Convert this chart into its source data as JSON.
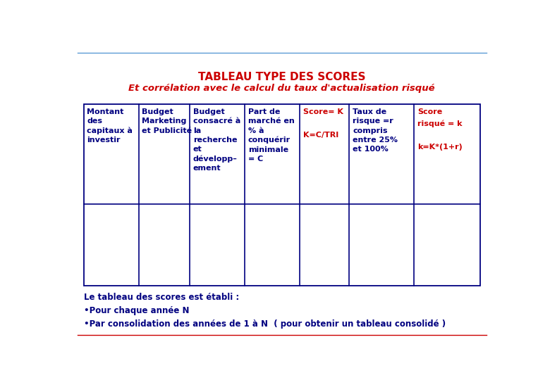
{
  "title_line1": "TABLEAU TYPE DES SCORES",
  "title_line2": "Et corrélation avec le calcul du taux d'actualisation risqué",
  "title_color": "#CC0000",
  "title_fontsize": 11,
  "subtitle_fontsize": 9.5,
  "bg_color": "#FFFFFF",
  "border_color": "#5B9BD5",
  "table_border_color": "#000080",
  "col1_text": "Montant\ndes\ncapitaux à\ninvestir",
  "col2_text": "Budget\nMarketing\net Publicité",
  "col3_text": "Budget\nconsacré à\nla\nrecherche\net\ndévelopp–\nement",
  "col4_text": "Part de\nmarché en\n% à\nconquérir\nminimale\n= C",
  "col5_text_red": "Score= K\n\nK=C/TRI",
  "col6_text": "Taux de\nrisque =r\ncompris\nentre 25%\net 100%",
  "col7_text_red": "Score\nrisqué = k\n\nk=K*(1+r)",
  "text_color_blue": "#000080",
  "text_color_red": "#CC0000",
  "cell_text_fontsize": 8,
  "footer_text": "Le tableau des scores est établi :\n•Pour chaque année N\n•Par consolidation des années de 1 à N  ( pour obtenir un tableau consolidé )",
  "footer_fontsize": 8.5,
  "footer_color": "#000080",
  "top_line_color": "#5B9BD5",
  "bottom_line_color": "#CC0000"
}
